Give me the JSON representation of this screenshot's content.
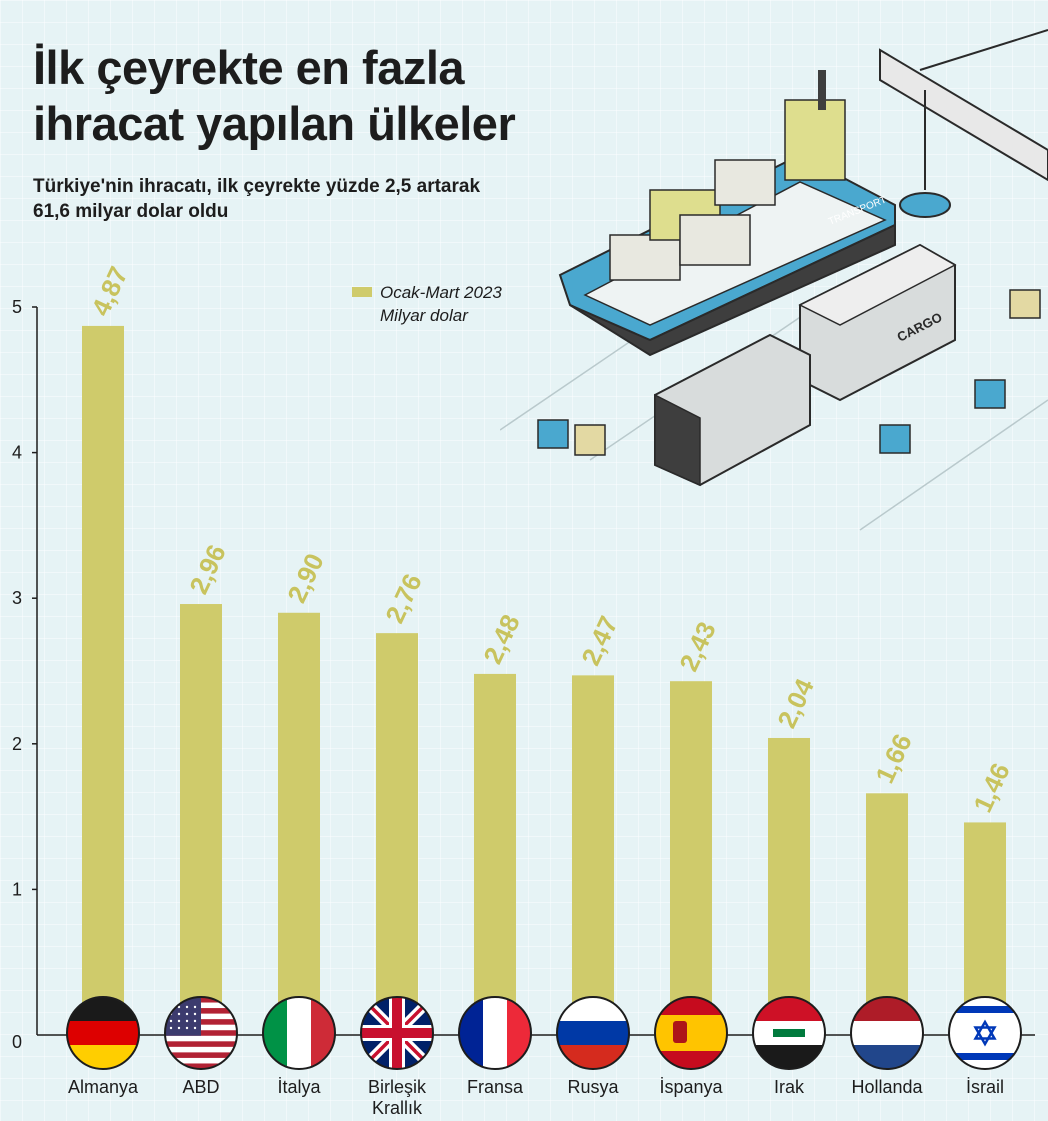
{
  "header": {
    "title_line1": "İlk çeyrekte en fazla",
    "title_line2": "ihracat yapılan ülkeler",
    "subtitle_line1": "Türkiye'nin ihracatı, ilk çeyrekte yüzde 2,5 artarak",
    "subtitle_line2": "61,6 milyar dolar oldu"
  },
  "legend": {
    "line1": "Ocak-Mart 2023",
    "line2": "Milyar dolar"
  },
  "illustration": {
    "ship_text": "TRANSPORT",
    "container_text": "CARGO"
  },
  "colors": {
    "bar": "#cfcb6b",
    "value_label": "#c8c35e",
    "axis": "#1d1d1d",
    "background": "#e6f3f5"
  },
  "chart_data": {
    "type": "bar",
    "title": "İlk çeyrekte en fazla ihracat yapılan ülkeler",
    "subtitle": "Türkiye'nin ihracatı, ilk çeyrekte yüzde 2,5 artarak 61,6 milyar dolar oldu",
    "categories": [
      "Almanya",
      "ABD",
      "İtalya",
      "Birleşik Krallık",
      "Fransa",
      "Rusya",
      "İspanya",
      "Irak",
      "Hollanda",
      "İsrail"
    ],
    "category_label_lines": [
      [
        "Almanya"
      ],
      [
        "ABD"
      ],
      [
        "İtalya"
      ],
      [
        "Birleşik",
        "Krallık"
      ],
      [
        "Fransa"
      ],
      [
        "Rusya"
      ],
      [
        "İspanya"
      ],
      [
        "Irak"
      ],
      [
        "Hollanda"
      ],
      [
        "İsrail"
      ]
    ],
    "flags": [
      "germany-flag",
      "usa-flag",
      "italy-flag",
      "uk-flag",
      "france-flag",
      "russia-flag",
      "spain-flag",
      "iraq-flag",
      "netherlands-flag",
      "israel-flag"
    ],
    "series": [
      {
        "name": "Ocak-Mart 2023",
        "values": [
          4.87,
          2.96,
          2.9,
          2.76,
          2.48,
          2.47,
          2.43,
          2.04,
          1.66,
          1.46
        ],
        "labels": [
          "4,87",
          "2,96",
          "2,90",
          "2,76",
          "2,48",
          "2,47",
          "2,43",
          "2,04",
          "1,66",
          "1,46"
        ]
      }
    ],
    "ylabel": "Milyar dolar",
    "ylim": [
      0,
      5
    ],
    "yticks": [
      0,
      1,
      2,
      3,
      4,
      5
    ],
    "grid": false,
    "legend_position": "top"
  }
}
